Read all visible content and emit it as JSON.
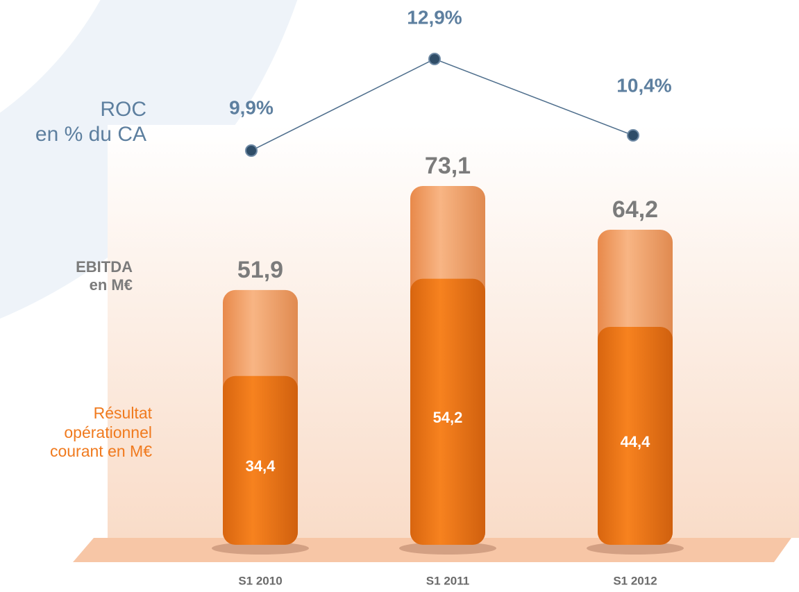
{
  "chart_data": {
    "type": "cylinder-bar-line",
    "categories": [
      "S1 2010",
      "S1 2011",
      "S1 2012"
    ],
    "series": [
      {
        "name": "EBITDA\nen M€",
        "color": "#f5a56b",
        "values": [
          51.9,
          73.1,
          64.2
        ],
        "value_labels": [
          "51,9",
          "73,1",
          "64,2"
        ]
      },
      {
        "name": "Résultat\nopérationnel\ncourant en M€",
        "color": "#f07a1e",
        "values": [
          34.4,
          54.2,
          44.4
        ],
        "value_labels": [
          "34,4",
          "54,2",
          "44,4"
        ]
      },
      {
        "name": "ROC\nen % du CA",
        "color": "#4e6e8c",
        "values": [
          9.9,
          12.9,
          10.4
        ],
        "value_labels": [
          "9,9%",
          "12,9%",
          "10,4%"
        ]
      }
    ]
  }
}
